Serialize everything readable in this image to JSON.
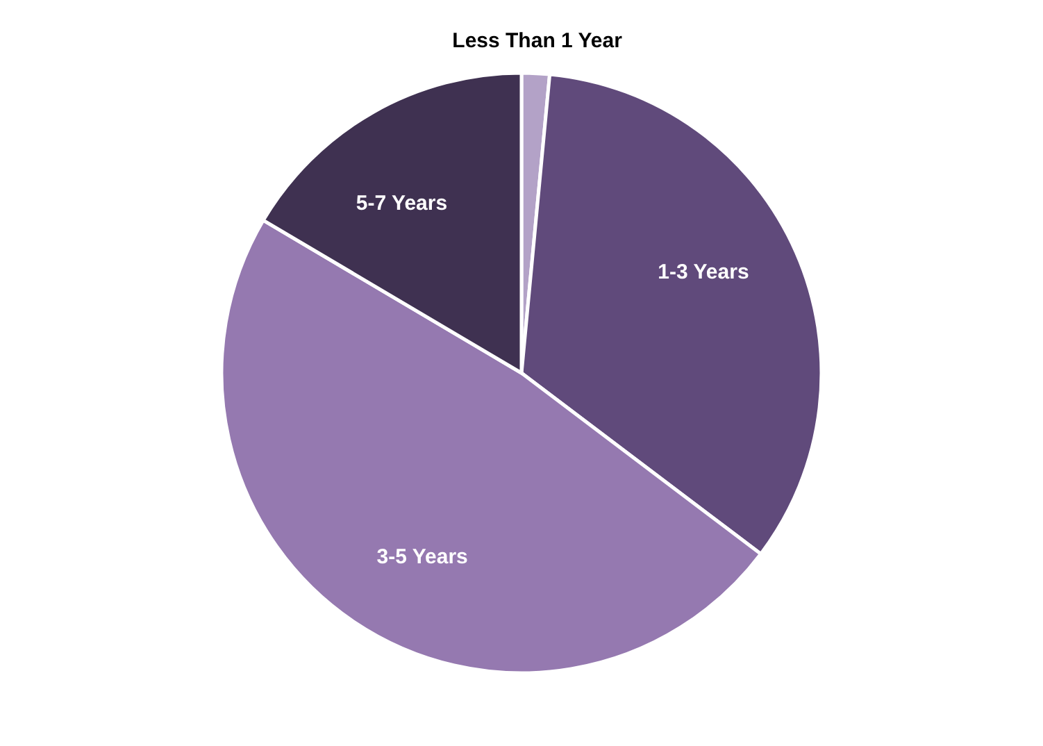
{
  "chart_data": {
    "type": "pie",
    "categories": [
      "Less Than 1 Year",
      "1-3 Years",
      "3-5 Years",
      "5-7 Years"
    ],
    "values": [
      1.5,
      33.8,
      48.2,
      16.5
    ],
    "colors": [
      "#b3a2c7",
      "#604a7b",
      "#9579b0",
      "#3f3151"
    ],
    "legend": false
  }
}
